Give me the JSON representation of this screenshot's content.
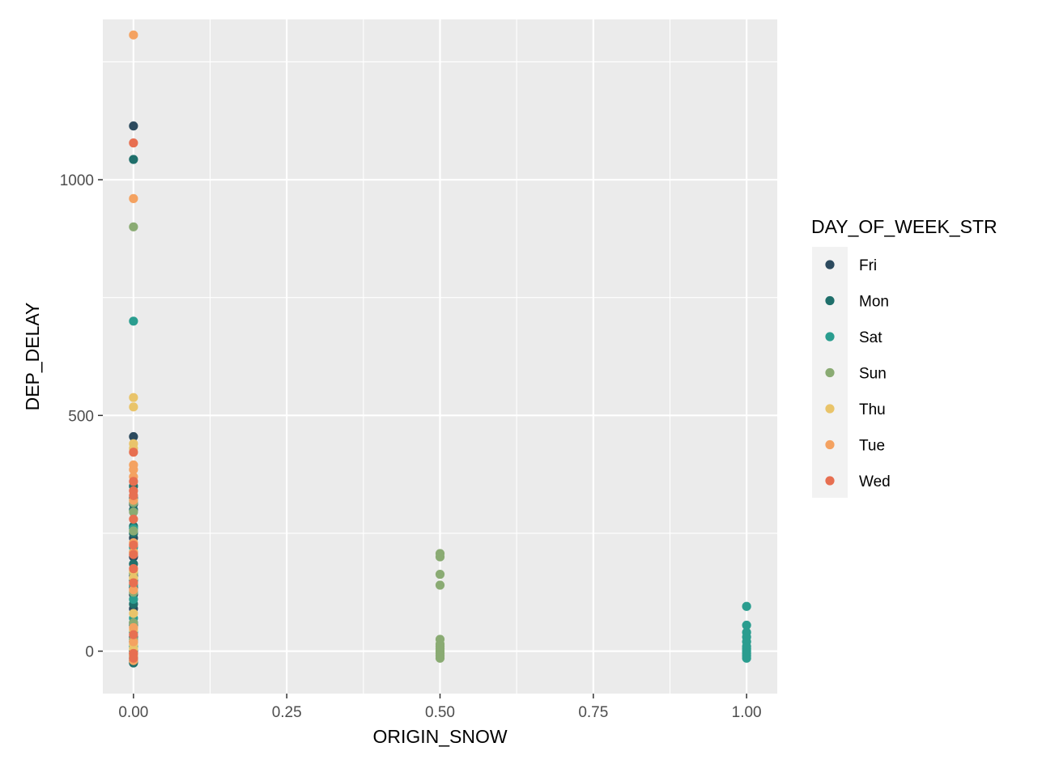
{
  "chart_data": {
    "type": "scatter",
    "xlabel": "ORIGIN_SNOW",
    "ylabel": "DEP_DELAY",
    "xlim": [
      -0.05,
      1.05
    ],
    "ylim": [
      -90,
      1340
    ],
    "x_ticks": [
      0,
      0.25,
      0.5,
      0.75,
      1
    ],
    "x_tick_labels": [
      "0.00",
      "0.25",
      "0.50",
      "0.75",
      "1.00"
    ],
    "y_ticks": [
      0,
      500,
      1000
    ],
    "y_tick_labels": [
      "0",
      "500",
      "1000"
    ],
    "grid": true,
    "legend": {
      "title": "DAY_OF_WEEK_STR",
      "position": "right"
    },
    "series": [
      {
        "name": "Fri",
        "color": "#2c4a5e",
        "points": [
          [
            0,
            1114
          ],
          [
            0,
            455
          ],
          [
            0,
            312
          ],
          [
            0,
            240
          ],
          [
            0,
            200
          ],
          [
            0,
            160
          ],
          [
            0,
            135
          ],
          [
            0,
            120
          ],
          [
            0,
            90
          ],
          [
            0,
            60
          ],
          [
            0,
            30
          ],
          [
            0,
            0
          ],
          [
            0,
            -20
          ]
        ]
      },
      {
        "name": "Mon",
        "color": "#1f6f6b",
        "points": [
          [
            0,
            1043
          ],
          [
            0,
            350
          ],
          [
            0,
            325
          ],
          [
            0,
            300
          ],
          [
            0,
            265
          ],
          [
            0,
            250
          ],
          [
            0,
            185
          ],
          [
            0,
            150
          ],
          [
            0,
            100
          ],
          [
            0,
            55
          ],
          [
            0,
            20
          ],
          [
            0,
            -10
          ],
          [
            0,
            -25
          ]
        ]
      },
      {
        "name": "Sat",
        "color": "#2a9d8f",
        "points": [
          [
            0,
            700
          ],
          [
            0,
            260
          ],
          [
            0,
            220
          ],
          [
            0,
            140
          ],
          [
            0,
            110
          ],
          [
            0,
            70
          ],
          [
            0,
            40
          ],
          [
            0,
            10
          ],
          [
            0,
            -15
          ],
          [
            1,
            95
          ],
          [
            1,
            55
          ],
          [
            1,
            40
          ],
          [
            1,
            30
          ],
          [
            1,
            20
          ],
          [
            1,
            10
          ],
          [
            1,
            5
          ],
          [
            1,
            0
          ],
          [
            1,
            -5
          ],
          [
            1,
            -10
          ],
          [
            1,
            -15
          ]
        ]
      },
      {
        "name": "Sun",
        "color": "#8aab73",
        "points": [
          [
            0,
            900
          ],
          [
            0,
            315
          ],
          [
            0,
            295
          ],
          [
            0,
            255
          ],
          [
            0,
            210
          ],
          [
            0,
            165
          ],
          [
            0,
            125
          ],
          [
            0,
            60
          ],
          [
            0,
            25
          ],
          [
            0,
            -5
          ],
          [
            0.5,
            207
          ],
          [
            0.5,
            200
          ],
          [
            0.5,
            163
          ],
          [
            0.5,
            140
          ],
          [
            0.5,
            25
          ],
          [
            0.5,
            15
          ],
          [
            0.5,
            10
          ],
          [
            0.5,
            5
          ],
          [
            0.5,
            0
          ],
          [
            0.5,
            -5
          ],
          [
            0.5,
            -10
          ],
          [
            0.5,
            -15
          ]
        ]
      },
      {
        "name": "Thu",
        "color": "#e9c46a",
        "points": [
          [
            0,
            538
          ],
          [
            0,
            518
          ],
          [
            0,
            440
          ],
          [
            0,
            430
          ],
          [
            0,
            170
          ],
          [
            0,
            155
          ],
          [
            0,
            80
          ],
          [
            0,
            45
          ],
          [
            0,
            15
          ],
          [
            0,
            5
          ],
          [
            0,
            -10
          ]
        ]
      },
      {
        "name": "Tue",
        "color": "#f4a261",
        "points": [
          [
            0,
            1307
          ],
          [
            0,
            960
          ],
          [
            0,
            395
          ],
          [
            0,
            385
          ],
          [
            0,
            370
          ],
          [
            0,
            320
          ],
          [
            0,
            230
          ],
          [
            0,
            210
          ],
          [
            0,
            130
          ],
          [
            0,
            50
          ],
          [
            0,
            20
          ],
          [
            0,
            -5
          ],
          [
            0,
            -20
          ]
        ]
      },
      {
        "name": "Wed",
        "color": "#e76f51",
        "points": [
          [
            0,
            1078
          ],
          [
            0,
            422
          ],
          [
            0,
            360
          ],
          [
            0,
            340
          ],
          [
            0,
            330
          ],
          [
            0,
            280
          ],
          [
            0,
            225
          ],
          [
            0,
            205
          ],
          [
            0,
            175
          ],
          [
            0,
            145
          ],
          [
            0,
            35
          ],
          [
            0,
            -5
          ],
          [
            0,
            -15
          ]
        ]
      }
    ]
  }
}
